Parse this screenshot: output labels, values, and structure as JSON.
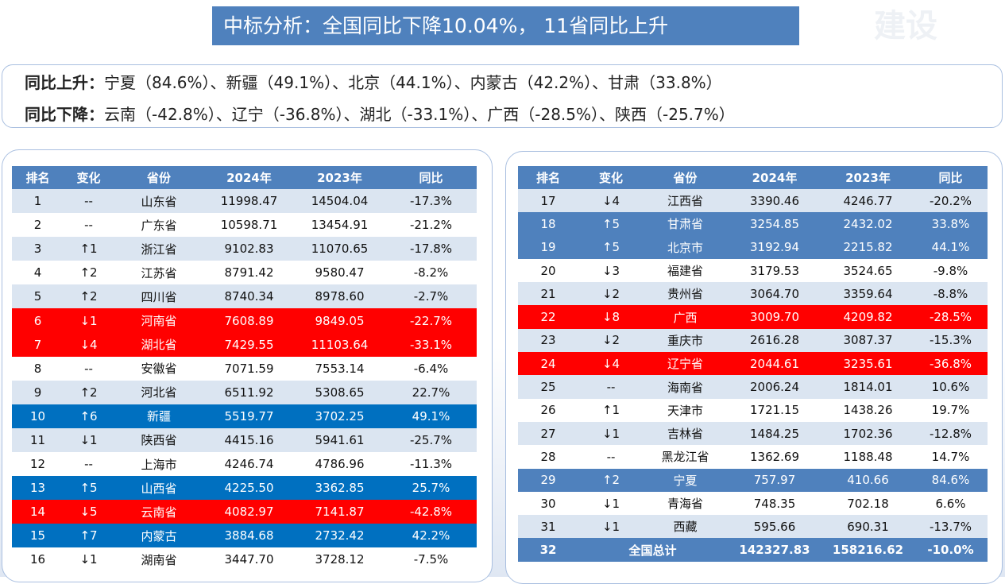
{
  "title": "中标分析：全国同比下降10.04%， 11省同比上升",
  "watermark": "建设",
  "summary": {
    "rising": {
      "label": "同比上升：",
      "text": "宁夏（84.6%）、新疆（49.1%）、北京（44.1%）、内蒙古（42.2%）、甘肃（33.8%）"
    },
    "falling": {
      "label": "同比下降：",
      "text": "云南（-42.8%）、辽宁（-36.8%）、湖北（-33.1%）、广西（-28.5%）、陕西（-25.7%）"
    }
  },
  "tables": [
    {
      "header": [
        "排名",
        "变化",
        "省份",
        "2024年",
        "2023年",
        "同比"
      ],
      "rows": [
        [
          "1",
          "--",
          "山东省",
          "11998.47",
          "14504.04",
          "-17.3%"
        ],
        [
          "2",
          "--",
          "广东省",
          "10598.71",
          "13454.91",
          "-21.2%"
        ],
        [
          "3",
          "↑1",
          "浙江省",
          "9102.83",
          "11070.65",
          "-17.8%"
        ],
        [
          "4",
          "↑2",
          "江苏省",
          "8791.42",
          "9580.47",
          "-8.2%"
        ],
        [
          "5",
          "↑2",
          "四川省",
          "8740.34",
          "8978.60",
          "-2.7%"
        ],
        [
          "6",
          "↓1",
          "河南省",
          "7608.89",
          "9849.05",
          "-22.7%"
        ],
        [
          "7",
          "↓4",
          "湖北省",
          "7429.55",
          "11103.64",
          "-33.1%"
        ],
        [
          "8",
          "--",
          "安徽省",
          "7071.59",
          "7553.14",
          "-6.4%"
        ],
        [
          "9",
          "↑2",
          "河北省",
          "6511.92",
          "5308.65",
          "22.7%"
        ],
        [
          "10",
          "↑6",
          "新疆",
          "5519.77",
          "3702.25",
          "49.1%"
        ],
        [
          "11",
          "↓1",
          "陕西省",
          "4415.16",
          "5941.61",
          "-25.7%"
        ],
        [
          "12",
          "--",
          "上海市",
          "4246.74",
          "4786.96",
          "-11.3%"
        ],
        [
          "13",
          "↑5",
          "山西省",
          "4225.50",
          "3362.85",
          "25.7%"
        ],
        [
          "14",
          "↓5",
          "云南省",
          "4082.97",
          "7141.87",
          "-42.8%"
        ],
        [
          "15",
          "↑7",
          "内蒙古",
          "3884.68",
          "2732.42",
          "42.2%"
        ],
        [
          "16",
          "↓1",
          "湖南省",
          "3447.70",
          "3728.12",
          "-7.5%"
        ]
      ],
      "row_colors": [
        null,
        null,
        null,
        null,
        null,
        "#ff0000",
        "#ff0000",
        null,
        null,
        "#0070c0",
        null,
        null,
        "#0070c0",
        "#ff0000",
        "#0070c0",
        null
      ]
    },
    {
      "header": [
        "排名",
        "变化",
        "省份",
        "2024年",
        "2023年",
        "同比"
      ],
      "rows": [
        [
          "17",
          "↓4",
          "江西省",
          "3390.46",
          "4246.77",
          "-20.2%"
        ],
        [
          "18",
          "↑5",
          "甘肃省",
          "3254.85",
          "2432.02",
          "33.8%"
        ],
        [
          "19",
          "↑5",
          "北京市",
          "3192.94",
          "2215.82",
          "44.1%"
        ],
        [
          "20",
          "↓3",
          "福建省",
          "3179.53",
          "3524.65",
          "-9.8%"
        ],
        [
          "21",
          "↓2",
          "贵州省",
          "3064.70",
          "3359.64",
          "-8.8%"
        ],
        [
          "22",
          "↓8",
          "广西",
          "3009.70",
          "4209.82",
          "-28.5%"
        ],
        [
          "23",
          "↓2",
          "重庆市",
          "2616.28",
          "3087.37",
          "-15.3%"
        ],
        [
          "24",
          "↓4",
          "辽宁省",
          "2044.61",
          "3235.61",
          "-36.8%"
        ],
        [
          "25",
          "--",
          "海南省",
          "2006.24",
          "1814.01",
          "10.6%"
        ],
        [
          "26",
          "↑1",
          "天津市",
          "1721.15",
          "1438.26",
          "19.7%"
        ],
        [
          "27",
          "↓1",
          "吉林省",
          "1484.25",
          "1702.36",
          "-12.8%"
        ],
        [
          "28",
          "--",
          "黑龙江省",
          "1362.69",
          "1188.48",
          "14.7%"
        ],
        [
          "29",
          "↑2",
          "宁夏",
          "757.97",
          "410.66",
          "84.6%"
        ],
        [
          "30",
          "↓1",
          "青海省",
          "748.35",
          "702.18",
          "6.6%"
        ],
        [
          "31",
          "↓1",
          "西藏",
          "595.66",
          "690.31",
          "-13.7%"
        ]
      ],
      "row_colors": [
        null,
        "#4f81bd",
        "#4f81bd",
        null,
        null,
        "#ff0000",
        null,
        "#ff0000",
        null,
        null,
        null,
        null,
        "#4f81bd",
        null,
        null
      ],
      "total": [
        "32",
        "全国总计",
        "142327.83",
        "158216.62",
        "-10.0%"
      ]
    }
  ]
}
